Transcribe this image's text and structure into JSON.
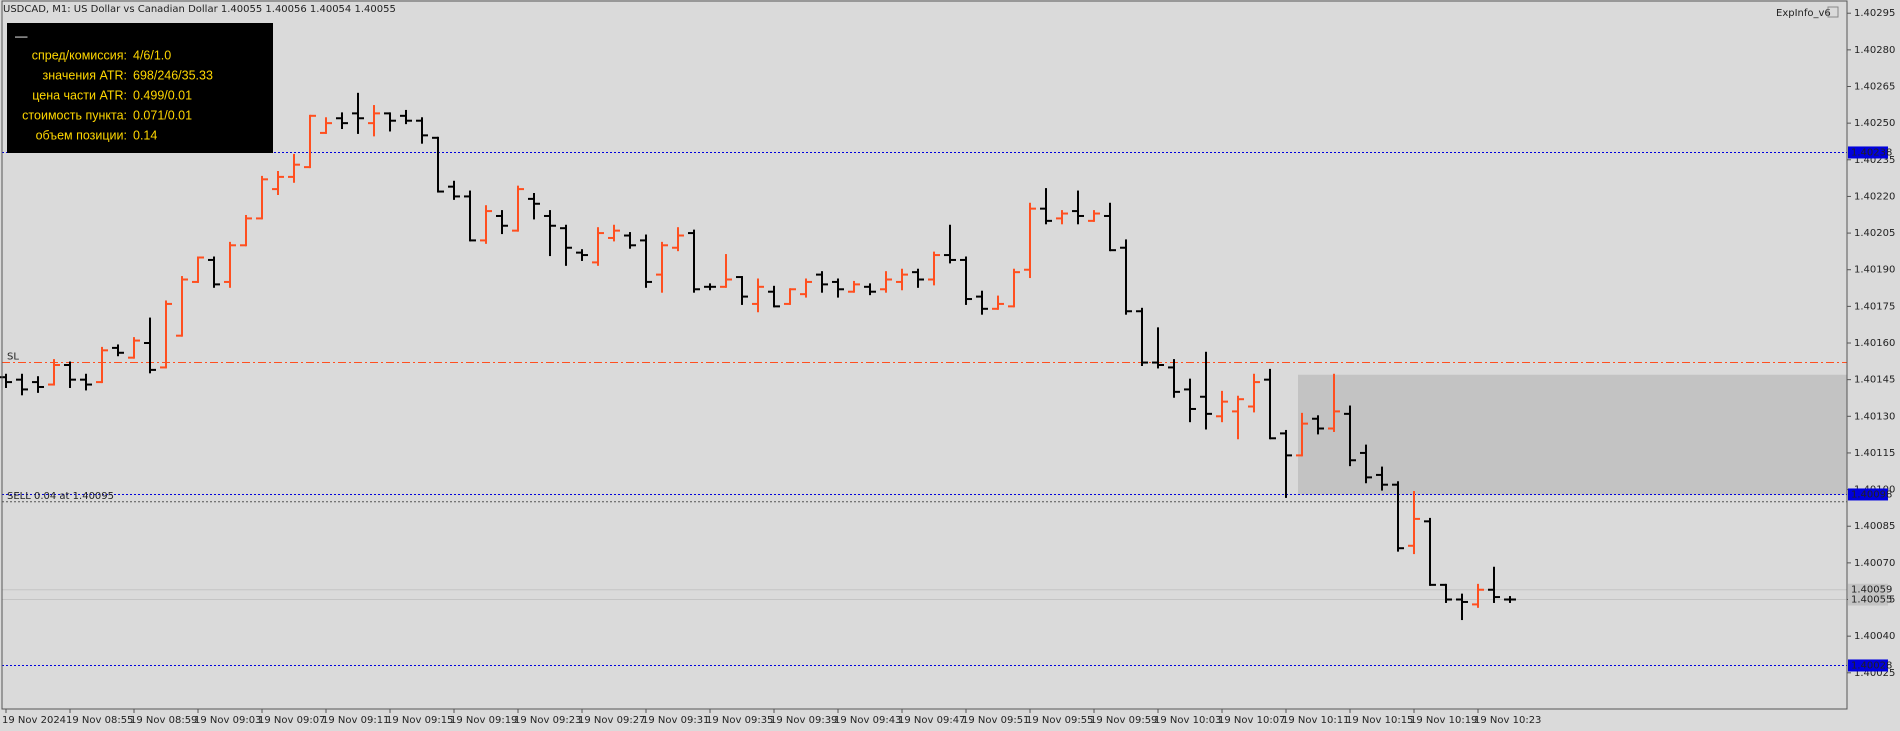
{
  "chart_data": {
    "type": "ohlc",
    "title": "USDCAD, M1:  US Dollar vs Canadian Dollar  1.40055 1.40056 1.40054 1.40055",
    "indicator": "ExpInfo_v6",
    "up_color": "#ff4f1f",
    "down_color": "#000000",
    "info_panel": {
      "button": "—",
      "rows": [
        {
          "label": "спред/комиссия:",
          "value": "4/6/1.0"
        },
        {
          "label": "значения ATR:",
          "value": "698/246/35.33"
        },
        {
          "label": "цена части ATR:",
          "value": "0.499/0.01"
        },
        {
          "label": "стоимость пункта:",
          "value": "0.071/0.01"
        },
        {
          "label": "объем позиции:",
          "value": "0.14"
        }
      ]
    },
    "x": [
      "19 Nov 2024",
      null,
      null,
      null,
      "19 Nov 08:55",
      null,
      null,
      null,
      "19 Nov 08:59",
      null,
      null,
      null,
      "19 Nov 09:03",
      null,
      null,
      null,
      "19 Nov 09:07",
      null,
      null,
      null,
      "19 Nov 09:11",
      null,
      null,
      null,
      "19 Nov 09:15",
      null,
      null,
      null,
      "19 Nov 09:19",
      null,
      null,
      null,
      "19 Nov 09:23",
      null,
      null,
      null,
      "19 Nov 09:27",
      null,
      null,
      null,
      "19 Nov 09:31",
      null,
      null,
      null,
      "19 Nov 09:35",
      null,
      null,
      null,
      "19 Nov 09:39",
      null,
      null,
      null,
      "19 Nov 09:43",
      null,
      null,
      null,
      "19 Nov 09:47",
      null,
      null,
      null,
      "19 Nov 09:51",
      null,
      null,
      null,
      "19 Nov 09:55",
      null,
      null,
      null,
      "19 Nov 09:59",
      null,
      null,
      null,
      "19 Nov 10:03",
      null,
      null,
      null,
      "19 Nov 10:07",
      null,
      null,
      null,
      "19 Nov 10:11",
      null,
      null,
      null,
      "19 Nov 10:15",
      null,
      null,
      null,
      "19 Nov 10:19",
      null,
      null,
      null,
      "19 Nov 10:23",
      null,
      null
    ],
    "open": [
      1.40146,
      1.40145,
      1.40144,
      1.40143,
      1.40151,
      1.40145,
      1.40144,
      1.40158,
      1.40154,
      1.4016,
      1.4015,
      1.40163,
      1.40185,
      1.40194,
      1.40185,
      1.402,
      1.40211,
      1.40223,
      1.40228,
      1.40232,
      1.40246,
      1.40252,
      1.40254,
      1.4025,
      1.40254,
      1.40253,
      1.40251,
      1.40244,
      1.40224,
      1.4022,
      1.40202,
      1.40212,
      1.40206,
      1.40219,
      1.40212,
      1.40207,
      1.40197,
      1.40193,
      1.40203,
      1.40204,
      1.40202,
      1.40188,
      1.40199,
      1.40205,
      1.40183,
      1.40183,
      1.40187,
      1.40176,
      1.40181,
      1.40176,
      1.4018,
      1.40188,
      1.40185,
      1.40181,
      1.40183,
      1.40182,
      1.40185,
      1.40189,
      1.40186,
      1.40196,
      1.40194,
      1.40179,
      1.40174,
      1.40175,
      1.4019,
      1.40215,
      1.40211,
      1.40214,
      1.4021,
      1.40212,
      1.40199,
      1.40173,
      1.40152,
      1.4015,
      1.40141,
      1.40138,
      1.4013,
      1.40132,
      1.40134,
      1.40145,
      1.40123,
      1.40114,
      1.40129,
      1.40125,
      1.40131,
      1.40115,
      1.40106,
      1.40102,
      1.40077,
      1.40087,
      1.40061,
      1.40055,
      1.40053,
      1.40059,
      1.40055
    ],
    "high": [
      1.40147,
      1.40147,
      1.40146,
      1.40153,
      1.40152,
      1.40147,
      1.40158,
      1.40159,
      1.40162,
      1.4017,
      1.40177,
      1.40187,
      1.40195,
      1.40195,
      1.40201,
      1.40212,
      1.40228,
      1.4023,
      1.40237,
      1.40253,
      1.40252,
      1.40254,
      1.40262,
      1.40257,
      1.40254,
      1.40255,
      1.40252,
      1.40244,
      1.40226,
      1.40222,
      1.40216,
      1.40214,
      1.40224,
      1.40221,
      1.40214,
      1.40208,
      1.40198,
      1.40207,
      1.40208,
      1.40205,
      1.40204,
      1.40201,
      1.40207,
      1.40206,
      1.40184,
      1.40196,
      1.40187,
      1.40186,
      1.40183,
      1.40182,
      1.40186,
      1.40189,
      1.40186,
      1.40185,
      1.40184,
      1.40189,
      1.4019,
      1.4019,
      1.40197,
      1.40208,
      1.40195,
      1.40181,
      1.40179,
      1.4019,
      1.40217,
      1.40223,
      1.40214,
      1.40222,
      1.40214,
      1.40217,
      1.40202,
      1.40174,
      1.40166,
      1.40153,
      1.40145,
      1.40156,
      1.4014,
      1.40138,
      1.40147,
      1.40149,
      1.40124,
      1.40131,
      1.4013,
      1.40147,
      1.40134,
      1.40118,
      1.40109,
      1.40103,
      1.40099,
      1.40088,
      1.40061,
      1.40057,
      1.40061,
      1.40068,
      1.40056
    ],
    "low": [
      1.40142,
      1.40139,
      1.4014,
      1.40143,
      1.40142,
      1.40141,
      1.40144,
      1.40155,
      1.40154,
      1.40148,
      1.4015,
      1.40163,
      1.40185,
      1.40183,
      1.40183,
      1.402,
      1.40211,
      1.40221,
      1.40226,
      1.40232,
      1.40246,
      1.40248,
      1.40246,
      1.40245,
      1.40247,
      1.4025,
      1.40242,
      1.40222,
      1.40219,
      1.40202,
      1.40201,
      1.40205,
      1.40206,
      1.40211,
      1.40196,
      1.40192,
      1.40194,
      1.40192,
      1.40202,
      1.40199,
      1.40183,
      1.40181,
      1.40198,
      1.40181,
      1.40182,
      1.40183,
      1.40176,
      1.40173,
      1.40175,
      1.40176,
      1.40179,
      1.40181,
      1.40179,
      1.40181,
      1.4018,
      1.40181,
      1.40182,
      1.40183,
      1.40184,
      1.40193,
      1.40176,
      1.40172,
      1.40174,
      1.40175,
      1.40187,
      1.40209,
      1.40209,
      1.40209,
      1.4021,
      1.40198,
      1.40172,
      1.40151,
      1.4015,
      1.40138,
      1.40128,
      1.40125,
      1.40128,
      1.40121,
      1.40132,
      1.40121,
      1.40097,
      1.40114,
      1.40123,
      1.40124,
      1.4011,
      1.40103,
      1.401,
      1.40075,
      1.40074,
      1.40061,
      1.40054,
      1.40047,
      1.40052,
      1.40054,
      1.40054
    ],
    "close": [
      1.40144,
      1.40141,
      1.40142,
      1.40151,
      1.40145,
      1.40143,
      1.40157,
      1.40156,
      1.40161,
      1.40149,
      1.40176,
      1.40186,
      1.40195,
      1.40184,
      1.402,
      1.40211,
      1.40227,
      1.40228,
      1.40233,
      1.40253,
      1.4025,
      1.4025,
      1.40252,
      1.40254,
      1.40251,
      1.40251,
      1.40245,
      1.40222,
      1.4022,
      1.40202,
      1.40214,
      1.40208,
      1.40223,
      1.40217,
      1.40208,
      1.40199,
      1.40196,
      1.40205,
      1.40206,
      1.402,
      1.40185,
      1.402,
      1.40204,
      1.40182,
      1.40183,
      1.40186,
      1.40179,
      1.40183,
      1.40175,
      1.40182,
      1.40185,
      1.40184,
      1.40182,
      1.40184,
      1.40181,
      1.40186,
      1.40188,
      1.40186,
      1.40196,
      1.40194,
      1.40178,
      1.40174,
      1.40176,
      1.40189,
      1.40215,
      1.4021,
      1.40213,
      1.40212,
      1.40213,
      1.40198,
      1.40173,
      1.40152,
      1.40151,
      1.4014,
      1.40133,
      1.40131,
      1.40136,
      1.40137,
      1.40144,
      1.40121,
      1.40114,
      1.40127,
      1.40125,
      1.40132,
      1.40112,
      1.40105,
      1.40102,
      1.40076,
      1.40088,
      1.40061,
      1.40055,
      1.40054,
      1.40059,
      1.40056,
      1.40055
    ],
    "ylim": [
      1.40011,
      1.403
    ],
    "yticks": [
      1.40025,
      {
        "value": 1.4004,
        "label": "1.40040"
      },
      1.40055,
      {
        "value": 1.4007,
        "label": "1.40070"
      },
      1.40085,
      {
        "value": 1.401,
        "label": "1.40100"
      },
      1.40115,
      {
        "value": 1.4013,
        "label": "1.40130"
      },
      1.40145,
      {
        "value": 1.4016,
        "label": "1.40160"
      },
      1.40175,
      {
        "value": 1.4019,
        "label": "1.40190"
      },
      1.40205,
      {
        "value": 1.4022,
        "label": "1.40220"
      },
      1.40235,
      {
        "value": 1.4025,
        "label": "1.40250"
      },
      1.40265,
      {
        "value": 1.4028,
        "label": "1.40280"
      },
      1.40295
    ],
    "zone": {
      "top": 1.40147,
      "bottom": 1.40098,
      "color": "#c3c3c3"
    },
    "levels": [
      {
        "value": 1.40238,
        "color": "#0000dd",
        "style": "dot",
        "price_box": true
      },
      {
        "value": 1.40152,
        "color": "#ff4f1f",
        "style": "dashdot",
        "label": "SL",
        "price_box": false
      },
      {
        "value": 1.40098,
        "color": "#0000dd",
        "style": "dot",
        "price_box": true
      },
      {
        "value": 1.40095,
        "color": "#555555",
        "style": "dot",
        "label": "SELL 0.04 at 1.40095",
        "price_box": false
      },
      {
        "value": 1.40059,
        "color": "#c4c4c4",
        "style": "solid",
        "price_box": true
      },
      {
        "value": 1.40055,
        "color": "#c4c4c4",
        "style": "solid",
        "price_box": true
      },
      {
        "value": 1.40028,
        "color": "#0000dd",
        "style": "dot",
        "price_box": true
      }
    ]
  }
}
